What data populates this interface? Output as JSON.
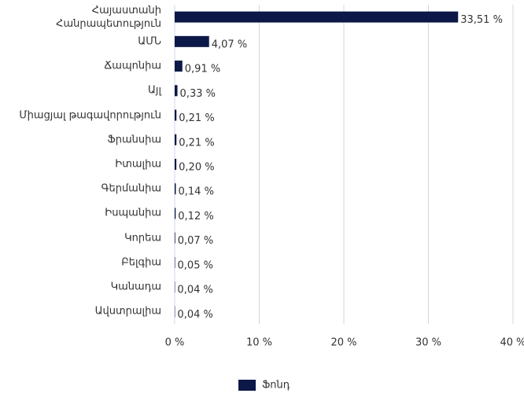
{
  "chart_data": {
    "type": "barh",
    "categories": [
      "Հայաստանի Հանրապետություն",
      "ԱՄՆ",
      "Ճապոնիա",
      "Այլ",
      "Միացյալ թագավորություն",
      "Ֆրանսիա",
      "Իտալիա",
      "Գերմանիա",
      "Իսպանիա",
      "Կորեա",
      "Բելգիա",
      "Կանադա",
      "Ավստրալիա"
    ],
    "series": [
      {
        "name": "Ֆոնդ",
        "color": "#0c1847",
        "values": [
          33.51,
          4.07,
          0.91,
          0.33,
          0.21,
          0.21,
          0.2,
          0.14,
          0.12,
          0.07,
          0.05,
          0.04,
          0.04
        ],
        "value_labels": [
          "33,51 %",
          "4,07 %",
          "0,91 %",
          "0,33 %",
          "0,21 %",
          "0,21 %",
          "0,20 %",
          "0,14 %",
          "0,12 %",
          "0,07 %",
          "0,05 %",
          "0,04 %",
          "0,04 %"
        ]
      }
    ],
    "xlim": [
      0,
      40
    ],
    "xticks": [
      {
        "value": 0,
        "label": "0 %"
      },
      {
        "value": 10,
        "label": "10 %"
      },
      {
        "value": 20,
        "label": "20 %"
      },
      {
        "value": 30,
        "label": "30 %"
      },
      {
        "value": 40,
        "label": "40 %"
      }
    ],
    "grid": true,
    "legend": "bottom"
  }
}
